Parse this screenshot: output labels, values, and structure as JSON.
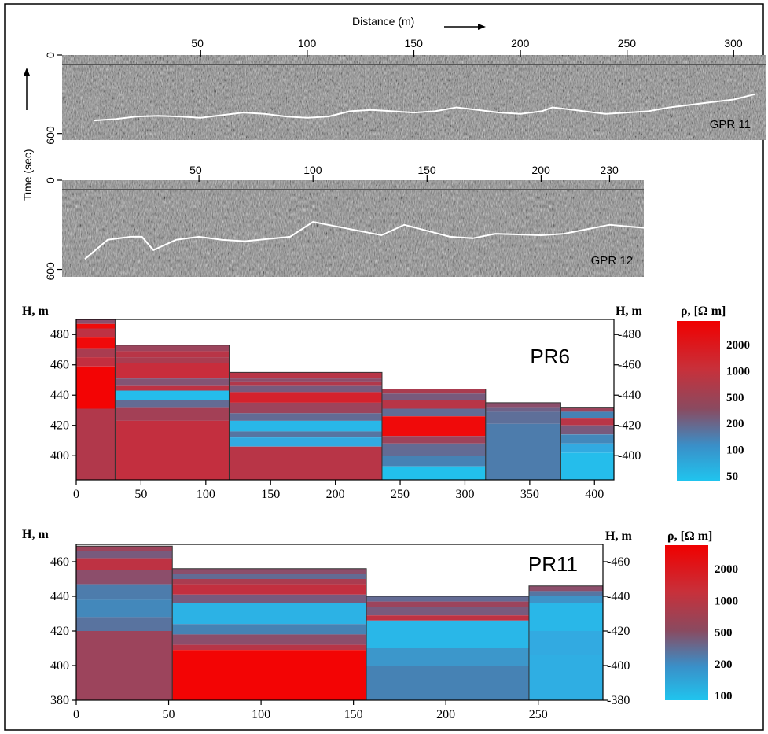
{
  "header": {
    "distance_label": "Distance (m)",
    "time_label": "Time (sec)"
  },
  "gpr": [
    {
      "name": "GPR 11",
      "x_ticks": [
        50,
        100,
        150,
        200,
        250,
        300
      ],
      "y_ticks": [
        "0",
        "600"
      ],
      "reflector": [
        [
          0,
          500
        ],
        [
          10,
          490
        ],
        [
          20,
          470
        ],
        [
          30,
          465
        ],
        [
          40,
          470
        ],
        [
          50,
          480
        ],
        [
          60,
          460
        ],
        [
          70,
          440
        ],
        [
          80,
          450
        ],
        [
          90,
          470
        ],
        [
          100,
          480
        ],
        [
          110,
          470
        ],
        [
          120,
          430
        ],
        [
          130,
          420
        ],
        [
          140,
          430
        ],
        [
          150,
          440
        ],
        [
          160,
          430
        ],
        [
          170,
          400
        ],
        [
          180,
          420
        ],
        [
          190,
          440
        ],
        [
          200,
          450
        ],
        [
          210,
          430
        ],
        [
          215,
          400
        ],
        [
          225,
          420
        ],
        [
          240,
          450
        ],
        [
          250,
          440
        ],
        [
          260,
          430
        ],
        [
          270,
          400
        ],
        [
          280,
          380
        ],
        [
          290,
          360
        ],
        [
          300,
          340
        ],
        [
          310,
          300
        ]
      ]
    },
    {
      "name": "GPR 12",
      "x_ticks": [
        50,
        100,
        150,
        200,
        230
      ],
      "y_ticks": [
        "0",
        "600"
      ],
      "reflector": [
        [
          0,
          530
        ],
        [
          10,
          400
        ],
        [
          20,
          380
        ],
        [
          25,
          380
        ],
        [
          30,
          470
        ],
        [
          40,
          400
        ],
        [
          50,
          380
        ],
        [
          60,
          400
        ],
        [
          70,
          410
        ],
        [
          90,
          380
        ],
        [
          100,
          280
        ],
        [
          110,
          310
        ],
        [
          130,
          370
        ],
        [
          140,
          300
        ],
        [
          150,
          340
        ],
        [
          160,
          380
        ],
        [
          170,
          390
        ],
        [
          180,
          360
        ],
        [
          200,
          370
        ],
        [
          210,
          360
        ],
        [
          220,
          330
        ],
        [
          230,
          300
        ],
        [
          245,
          320
        ]
      ]
    }
  ],
  "colorbar_ticks_common": [
    "2000",
    "1000",
    "500",
    "200",
    "100"
  ],
  "chart_data": [
    {
      "type": "heatmap",
      "title": "PR6",
      "xlabel": "",
      "ylabel": "H, m",
      "ylabel_right": "H, m",
      "colorbar_label": "ρ, [Ω m]",
      "colorbar_ticks": [
        "2000",
        "1000",
        "500",
        "200",
        "100",
        "50"
      ],
      "xlim": [
        0,
        415
      ],
      "ylim": [
        384,
        490
      ],
      "x_ticks": [
        0,
        50,
        100,
        150,
        200,
        250,
        300,
        350,
        400
      ],
      "y_ticks": [
        400,
        420,
        440,
        460,
        480
      ],
      "columns": [
        {
          "x": [
            0,
            30
          ],
          "top": 490,
          "layers": [
            [
              490,
              487,
              500
            ],
            [
              487,
              484,
              2000
            ],
            [
              484,
              478,
              1000
            ],
            [
              478,
              471,
              2000
            ],
            [
              471,
              465,
              700
            ],
            [
              465,
              459,
              1100
            ],
            [
              459,
              431,
              2500
            ],
            [
              431,
              384,
              800
            ]
          ]
        },
        {
          "x": [
            30,
            118
          ],
          "top": 473,
          "layers": [
            [
              473,
              469,
              600
            ],
            [
              469,
              465,
              900
            ],
            [
              465,
              461,
              700
            ],
            [
              461,
              451,
              1200
            ],
            [
              451,
              446,
              450
            ],
            [
              446,
              443,
              1000
            ],
            [
              443,
              437,
              60
            ],
            [
              437,
              432,
              300
            ],
            [
              432,
              423,
              650
            ],
            [
              423,
              384,
              1100
            ]
          ]
        },
        {
          "x": [
            118,
            236
          ],
          "top": 455,
          "layers": [
            [
              455,
              451,
              900
            ],
            [
              451,
              449,
              500
            ],
            [
              449,
              446,
              800
            ],
            [
              446,
              442,
              400
            ],
            [
              442,
              435,
              1400
            ],
            [
              435,
              428,
              600
            ],
            [
              428,
              423,
              300
            ],
            [
              423,
              416,
              70
            ],
            [
              416,
              412,
              250
            ],
            [
              412,
              406,
              100
            ],
            [
              406,
              384,
              900
            ]
          ]
        },
        {
          "x": [
            236,
            316
          ],
          "top": 444,
          "layers": [
            [
              444,
              441,
              700
            ],
            [
              441,
              437,
              400
            ],
            [
              437,
              431,
              900
            ],
            [
              431,
              426,
              300
            ],
            [
              426,
              413,
              2000
            ],
            [
              413,
              408,
              600
            ],
            [
              408,
              400,
              300
            ],
            [
              400,
              393,
              200
            ],
            [
              393,
              384,
              55
            ]
          ]
        },
        {
          "x": [
            316,
            374
          ],
          "top": 435,
          "layers": [
            [
              435,
              432,
              500
            ],
            [
              432,
              429,
              350
            ],
            [
              429,
              421,
              280
            ],
            [
              421,
              384,
              220
            ]
          ]
        },
        {
          "x": [
            374,
            415
          ],
          "top": 432,
          "layers": [
            [
              432,
              429,
              600
            ],
            [
              429,
              425,
              200
            ],
            [
              425,
              420,
              900
            ],
            [
              420,
              414,
              400
            ],
            [
              414,
              408,
              180
            ],
            [
              408,
              402,
              100
            ],
            [
              402,
              384,
              60
            ]
          ]
        }
      ]
    },
    {
      "type": "heatmap",
      "title": "PR11",
      "xlabel": "",
      "ylabel": "H, m",
      "ylabel_right": "H, m",
      "colorbar_label": "ρ, [Ω m]",
      "colorbar_ticks": [
        "2000",
        "1000",
        "500",
        "200",
        "100"
      ],
      "xlim": [
        0,
        285
      ],
      "ylim": [
        380,
        470
      ],
      "x_ticks": [
        0,
        50,
        100,
        150,
        200,
        250
      ],
      "y_ticks": [
        380,
        400,
        420,
        440,
        460
      ],
      "columns": [
        {
          "x": [
            0,
            52
          ],
          "top": 469,
          "layers": [
            [
              469,
              466,
              600
            ],
            [
              466,
              462,
              400
            ],
            [
              462,
              455,
              1000
            ],
            [
              455,
              447,
              500
            ],
            [
              447,
              438,
              220
            ],
            [
              438,
              428,
              180
            ],
            [
              428,
              420,
              260
            ],
            [
              420,
              380,
              600
            ]
          ]
        },
        {
          "x": [
            52,
            157
          ],
          "top": 456,
          "layers": [
            [
              456,
              453,
              500
            ],
            [
              453,
              450,
              300
            ],
            [
              450,
              447,
              700
            ],
            [
              447,
              441,
              1100
            ],
            [
              441,
              436,
              400
            ],
            [
              436,
              424,
              80
            ],
            [
              424,
              418,
              200
            ],
            [
              418,
              412,
              500
            ],
            [
              412,
              409,
              900
            ],
            [
              409,
              380,
              2500
            ]
          ]
        },
        {
          "x": [
            157,
            245
          ],
          "top": 440,
          "layers": [
            [
              440,
              437,
              300
            ],
            [
              437,
              434,
              600
            ],
            [
              434,
              429,
              400
            ],
            [
              429,
              426,
              1000
            ],
            [
              426,
              410,
              70
            ],
            [
              410,
              400,
              140
            ],
            [
              400,
              380,
              200
            ]
          ]
        },
        {
          "x": [
            245,
            285
          ],
          "top": 446,
          "layers": [
            [
              446,
              443,
              500
            ],
            [
              443,
              440,
              250
            ],
            [
              440,
              436,
              150
            ],
            [
              436,
              420,
              70
            ],
            [
              420,
              406,
              100
            ],
            [
              406,
              380,
              90
            ]
          ]
        }
      ]
    }
  ]
}
